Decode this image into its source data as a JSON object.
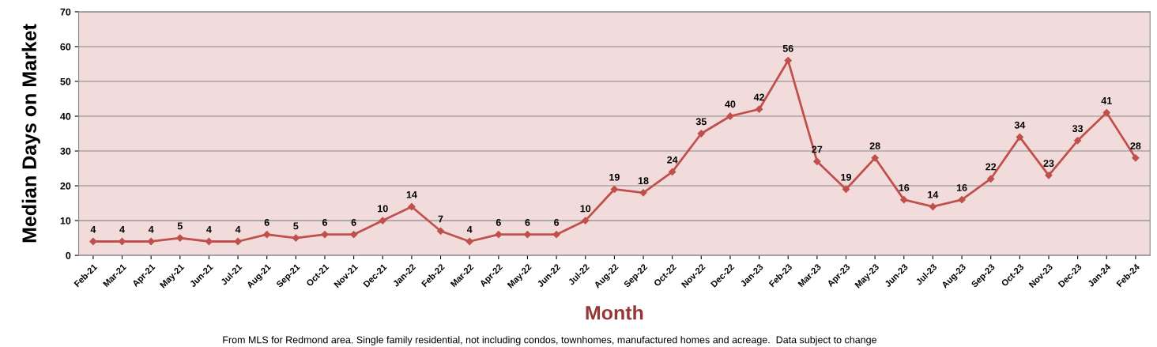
{
  "chart_data": {
    "type": "line",
    "xlabel": "Month",
    "ylabel": "Median Days on Market",
    "categories": [
      "Feb-21",
      "Mar-21",
      "Apr-21",
      "May-21",
      "Jun-21",
      "Jul-21",
      "Aug-21",
      "Sep-21",
      "Oct-21",
      "Nov-21",
      "Dec-21",
      "Jan-22",
      "Feb-22",
      "Mar-22",
      "Apr-22",
      "May-22",
      "Jun-22",
      "Jul-22",
      "Aug-22",
      "Sep-22",
      "Oct-22",
      "Nov-22",
      "Dec-22",
      "Jan-23",
      "Feb-23",
      "Mar-23",
      "Apr-23",
      "May-23",
      "Jun-23",
      "Jul-23",
      "Aug-23",
      "Sep-23",
      "Oct-23",
      "Nov-23",
      "Dec-23",
      "Jan-24",
      "Feb-24"
    ],
    "series": [
      {
        "color": "#c0504d",
        "values": [
          4,
          4,
          4,
          5,
          4,
          4,
          6,
          5,
          6,
          6,
          10,
          14,
          7,
          4,
          6,
          6,
          6,
          10,
          19,
          18,
          24,
          35,
          40,
          42,
          56,
          27,
          19,
          28,
          16,
          14,
          16,
          22,
          34,
          23,
          33,
          41,
          28
        ]
      }
    ],
    "ylim": [
      0,
      70
    ],
    "yticks": [
      0,
      10,
      20,
      30,
      40,
      50,
      60,
      70
    ],
    "grid": "y",
    "marker": "diamond",
    "line_style": "solid",
    "data_labels": true,
    "legend": false,
    "annotations": [
      "From MLS for Redmond area. Single family residential, not including condos, townhomes, manufactured homes and acreage.  Data subject to change"
    ]
  }
}
